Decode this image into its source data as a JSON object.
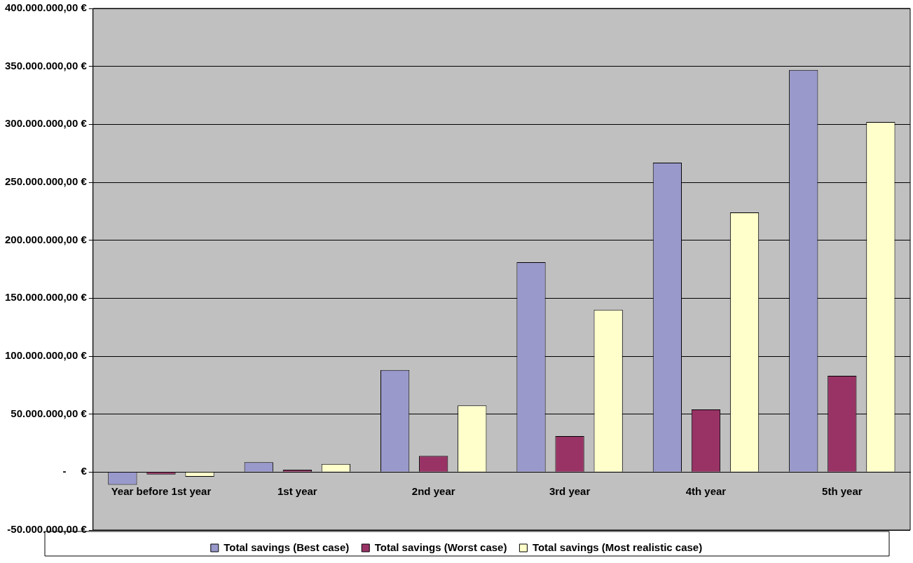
{
  "chart_data": {
    "type": "bar",
    "categories": [
      "Year before 1st year",
      "1st year",
      "2nd year",
      "3rd year",
      "4th year",
      "5th year"
    ],
    "series": [
      {
        "name": "Total savings (Best case)",
        "color": "#9999cc",
        "values": [
          -11000000,
          8500000,
          88000000,
          181000000,
          267000000,
          347000000
        ]
      },
      {
        "name": "Total savings (Worst case)",
        "color": "#993366",
        "values": [
          -2000000,
          2000000,
          14000000,
          31000000,
          54000000,
          83000000
        ]
      },
      {
        "name": "Total savings (Most realistic case)",
        "color": "#ffffcc",
        "values": [
          -4000000,
          7000000,
          57500000,
          140000000,
          224000000,
          302000000
        ]
      }
    ],
    "ylim": [
      -50000000,
      400000000
    ],
    "yticks": [
      {
        "value": -50000000,
        "label": "-50.000.000,00 €"
      },
      {
        "value": 0,
        "label": "-     €"
      },
      {
        "value": 50000000,
        "label": "50.000.000,00 €"
      },
      {
        "value": 100000000,
        "label": "100.000.000,00 €"
      },
      {
        "value": 150000000,
        "label": "150.000.000,00 €"
      },
      {
        "value": 200000000,
        "label": "200.000.000,00 €"
      },
      {
        "value": 250000000,
        "label": "250.000.000,00 €"
      },
      {
        "value": 300000000,
        "label": "300.000.000,00 €"
      },
      {
        "value": 350000000,
        "label": "350.000.000,00 €"
      },
      {
        "value": 400000000,
        "label": "400.000.000,00 €"
      }
    ],
    "grid": "y",
    "legend": "bottom"
  }
}
